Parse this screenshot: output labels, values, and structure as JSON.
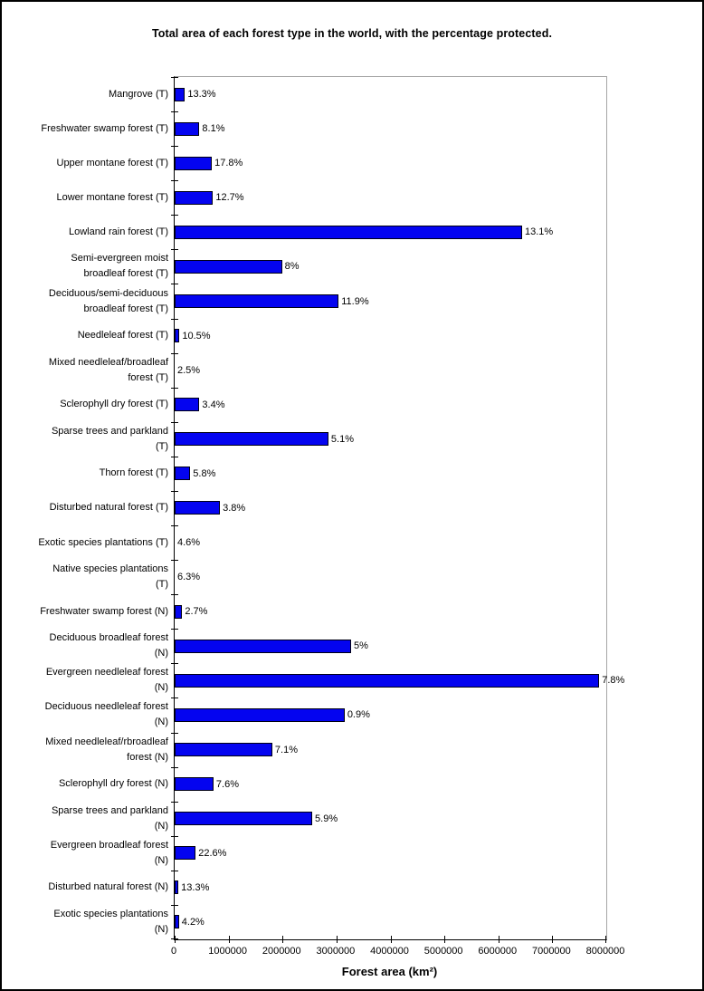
{
  "chart_data": {
    "type": "bar",
    "orientation": "horizontal",
    "title": "Total area of each forest type in the world, with the percentage protected.",
    "xlabel": "Forest area (km²)",
    "xlim": [
      0,
      8000000
    ],
    "x_tick_labels": [
      "0",
      "1000000",
      "2000000",
      "3000000",
      "4000000",
      "5000000",
      "6000000",
      "7000000",
      "8000000"
    ],
    "grid": false,
    "legend": false,
    "bar_color": "#0404f0",
    "categories": [
      "Mangrove (T)",
      "Freshwater swamp forest (T)",
      "Upper montane forest (T)",
      "Lower montane forest (T)",
      "Lowland rain forest (T)",
      "Semi-evergreen moist\nbroadleaf forest (T)",
      "Deciduous/semi-deciduous\nbroadleaf forest (T)",
      "Needleleaf forest (T)",
      "Mixed needleleaf/broadleaf\nforest (T)",
      "Sclerophyll dry forest (T)",
      "Sparse trees and parkland\n(T)",
      "Thorn forest (T)",
      "Disturbed natural forest (T)",
      "Exotic species plantations (T)",
      "Native species plantations\n(T)",
      "Freshwater swamp forest (N)",
      "Deciduous broadleaf forest\n(N)",
      "Evergreen needleleaf forest\n(N)",
      "Deciduous needleleaf forest\n(N)",
      "Mixed needleleaf/rbroadleaf\nforest (N)",
      "Sclerophyll dry forest (N)",
      "Sparse trees and parkland\n(N)",
      "Evergreen broadleaf forest\n(N)",
      "Disturbed natural forest (N)",
      "Exotic species plantations\n(N)"
    ],
    "values": [
      190000,
      460000,
      690000,
      710000,
      6440000,
      1990000,
      3040000,
      90000,
      0,
      460000,
      2850000,
      290000,
      840000,
      0,
      0,
      140000,
      3270000,
      7870000,
      3150000,
      1810000,
      720000,
      2550000,
      390000,
      70000,
      80000
    ],
    "bar_labels": [
      "13.3%",
      "8.1%",
      "17.8%",
      "12.7%",
      "13.1%",
      "8%",
      "11.9%",
      "10.5%",
      "2.5%",
      "3.4%",
      "5.1%",
      "5.8%",
      "3.8%",
      "4.6%",
      "6.3%",
      "2.7%",
      "5%",
      "7.8%",
      "0.9%",
      "7.1%",
      "7.6%",
      "5.9%",
      "22.6%",
      "13.3%",
      "4.2%"
    ]
  }
}
